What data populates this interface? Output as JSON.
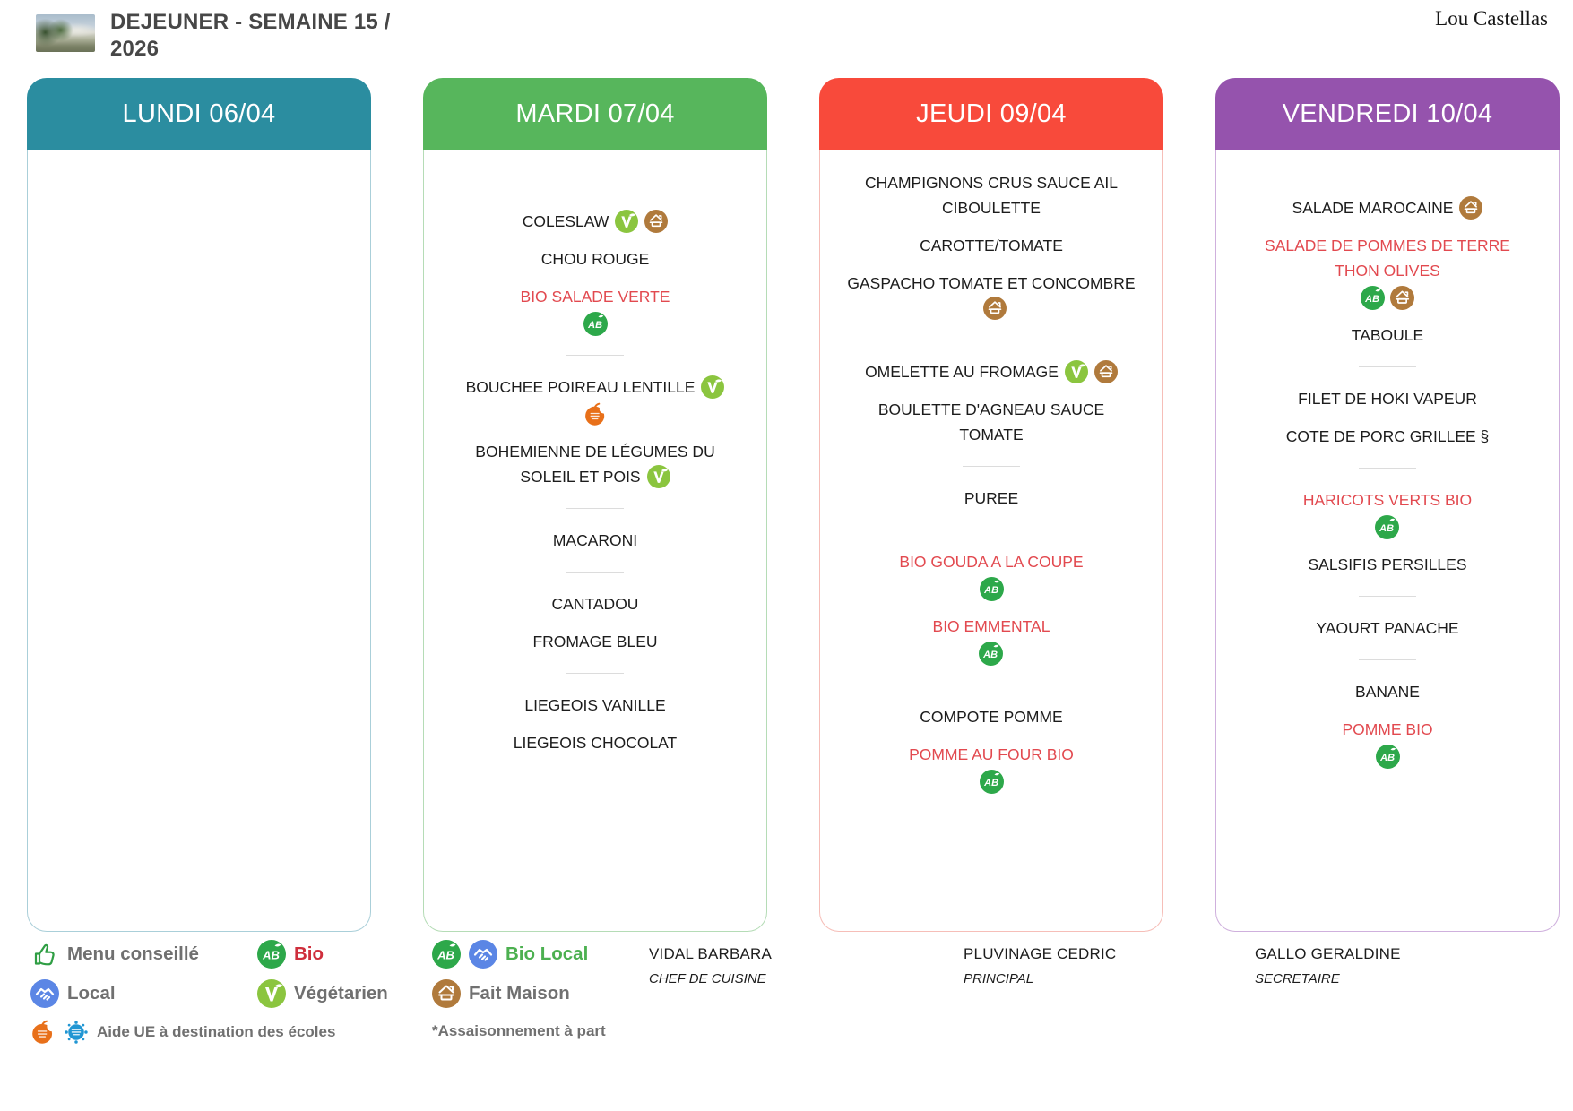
{
  "header": {
    "title_line1": "DEJEUNER - SEMAINE 15 /",
    "title_line2": "2026",
    "site_name": "Lou Castellas"
  },
  "days": [
    {
      "name": "LUNDI 06/04",
      "header_color": "#2b8da0",
      "border_color": "#aacfd9",
      "entries": []
    },
    {
      "name": "MARDI 07/04",
      "header_color": "#57b65c",
      "border_color": "#b5dcb6",
      "entries": [
        {
          "label": "COLESLAW",
          "inline": [
            "vegetarian",
            "fait-maison"
          ]
        },
        {
          "label": "CHOU ROUGE"
        },
        {
          "label": "BIO SALADE VERTE",
          "bio": true,
          "below": [
            "bio"
          ]
        },
        {
          "divider": true
        },
        {
          "label": "BOUCHEE POIREAU LENTILLE",
          "inline": [
            "vegetarian"
          ],
          "below": [
            "aide-ue-fruit"
          ]
        },
        {
          "label": "BOHEMIENNE DE LÉGUMES DU SOLEIL ET POIS",
          "inline": [
            "vegetarian"
          ]
        },
        {
          "divider": true
        },
        {
          "label": "MACARONI"
        },
        {
          "divider": true
        },
        {
          "label": "CANTADOU"
        },
        {
          "label": "FROMAGE BLEU"
        },
        {
          "divider": true
        },
        {
          "label": "LIEGEOIS VANILLE"
        },
        {
          "label": "LIEGEOIS CHOCOLAT"
        }
      ]
    },
    {
      "name": "JEUDI 09/04",
      "header_color": "#f84a3b",
      "border_color": "#f6beb8",
      "entries": [
        {
          "label": "CHAMPIGNONS CRUS SAUCE AIL CIBOULETTE"
        },
        {
          "label": "CAROTTE/TOMATE"
        },
        {
          "label": "GASPACHO TOMATE ET CONCOMBRE",
          "inline": [
            "fait-maison"
          ]
        },
        {
          "divider": true
        },
        {
          "label": "OMELETTE AU FROMAGE",
          "inline": [
            "vegetarian",
            "fait-maison"
          ]
        },
        {
          "label": "BOULETTE D'AGNEAU SAUCE TOMATE"
        },
        {
          "divider": true
        },
        {
          "label": "PUREE"
        },
        {
          "divider": true
        },
        {
          "label": "BIO GOUDA A LA COUPE",
          "bio": true,
          "below": [
            "bio"
          ]
        },
        {
          "label": "BIO EMMENTAL",
          "bio": true,
          "below": [
            "bio"
          ]
        },
        {
          "divider": true
        },
        {
          "label": "COMPOTE POMME"
        },
        {
          "label": "POMME AU FOUR BIO",
          "bio": true,
          "below": [
            "bio"
          ]
        }
      ]
    },
    {
      "name": "VENDREDI 10/04",
      "header_color": "#9553ad",
      "border_color": "#cfb0dd",
      "entries": [
        {
          "label": "SALADE MAROCAINE",
          "inline": [
            "fait-maison"
          ]
        },
        {
          "label": "SALADE DE POMMES DE TERRE THON OLIVES",
          "bio": true,
          "below": [
            "bio",
            "fait-maison"
          ]
        },
        {
          "label": "TABOULE"
        },
        {
          "divider": true
        },
        {
          "label": "FILET DE HOKI VAPEUR"
        },
        {
          "label": "COTE DE PORC GRILLEE §"
        },
        {
          "divider": true
        },
        {
          "label": "HARICOTS VERTS BIO",
          "bio": true,
          "below": [
            "bio"
          ]
        },
        {
          "label": "SALSIFIS PERSILLES"
        },
        {
          "divider": true
        },
        {
          "label": "YAOURT PANACHE"
        },
        {
          "divider": true
        },
        {
          "label": "BANANE"
        },
        {
          "label": "POMME BIO",
          "bio": true,
          "below": [
            "bio"
          ]
        }
      ]
    }
  ],
  "staff": [
    {
      "name": "VIDAL BARBARA",
      "role": "CHEF DE CUISINE"
    },
    {
      "name": "PLUVINAGE CEDRIC",
      "role": "PRINCIPAL"
    },
    {
      "name": "GALLO GERALDINE",
      "role": "SECRETAIRE"
    }
  ],
  "legend": [
    {
      "icons": [
        "menu-conseille"
      ],
      "label": "Menu conseillé",
      "label_color": "#707070"
    },
    {
      "icons": [
        "bio"
      ],
      "label": "Bio",
      "label_color": "#cf2e3c"
    },
    {
      "icons": [
        "bio",
        "local"
      ],
      "label": "Bio Local",
      "label_color": "#4cb050"
    },
    {
      "icons": [
        "local"
      ],
      "label": "Local",
      "label_color": "#707070"
    },
    {
      "icons": [
        "vegetarian"
      ],
      "label": "Végétarien",
      "label_color": "#707070"
    },
    {
      "icons": [
        "fait-maison"
      ],
      "label": "Fait Maison",
      "label_color": "#707070"
    },
    {
      "icons": [
        "aide-ue-fruit",
        "aide-ue-lait"
      ],
      "label": "Aide UE à destination des écoles",
      "label_color": "#707070"
    },
    {
      "icons": [],
      "label": "*Assaisonnement à part",
      "label_color": "#707070"
    }
  ],
  "icon_colors": {
    "bio": "#2da84a",
    "vegetarian": "#8bc53f",
    "fait-maison": "#b07a3c",
    "local": "#5b86e5",
    "menu-conseille": "#2f9e44",
    "aide-ue-fruit": "#e8701a",
    "aide-ue-lait": "#2196d3"
  },
  "dish_bio_color": "#e2494f"
}
